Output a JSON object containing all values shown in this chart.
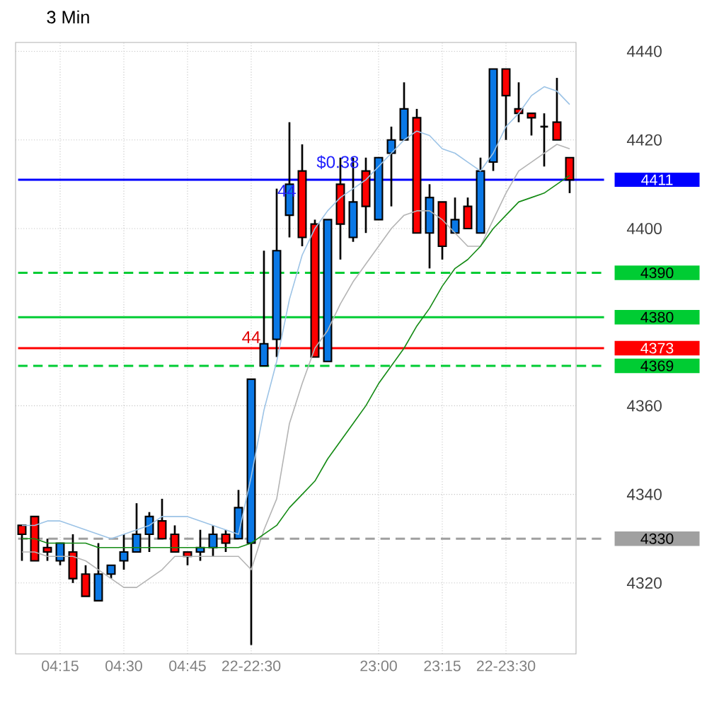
{
  "chart_data": {
    "type": "candlestick",
    "title": "3 Min",
    "categories": [
      null,
      null,
      null,
      "04:15",
      null,
      null,
      null,
      null,
      "04:30",
      null,
      null,
      null,
      null,
      "04:45",
      null,
      null,
      null,
      null,
      "22-22:30",
      null,
      null,
      null,
      null,
      null,
      null,
      null,
      null,
      null,
      "23:00",
      null,
      null,
      null,
      null,
      "23:15",
      null,
      null,
      null,
      null,
      "22-23:30",
      null,
      null,
      null,
      null,
      null
    ],
    "ohlc": [
      [
        4333,
        4333,
        4325,
        4331
      ],
      [
        4335,
        4335,
        4325,
        4325
      ],
      [
        4328,
        4330,
        4325,
        4327
      ],
      [
        4325,
        4329,
        4324,
        4329
      ],
      [
        4327,
        4331,
        4320,
        4321
      ],
      [
        4322,
        4324,
        4317,
        4317
      ],
      [
        4316,
        4329,
        4316,
        4322
      ],
      [
        4322,
        4324,
        4321,
        4324
      ],
      [
        4325,
        4331,
        4323,
        4327
      ],
      [
        4327,
        4338,
        4327,
        4331
      ],
      [
        4331,
        4336,
        4327,
        4335
      ],
      [
        4334,
        4339,
        4330,
        4330
      ],
      [
        4331,
        4333,
        4327,
        4327
      ],
      [
        4327,
        4327,
        4324,
        4326
      ],
      [
        4327,
        4332,
        4325,
        4328
      ],
      [
        4328,
        4333,
        4326,
        4331
      ],
      [
        4331,
        4332,
        4327,
        4329
      ],
      [
        4330,
        4341,
        4330,
        4337
      ],
      [
        4329,
        4366,
        4306,
        4366
      ],
      [
        4369,
        4395,
        4369,
        4374
      ],
      [
        4375,
        4409,
        4371,
        4395
      ],
      [
        4403,
        4424,
        4398,
        4410
      ],
      [
        4413,
        4419,
        4396,
        4398
      ],
      [
        4401,
        4402,
        4371,
        4371
      ],
      [
        4370,
        4402,
        4370,
        4402
      ],
      [
        4410,
        4416,
        4393,
        4401
      ],
      [
        4398,
        4416,
        4397,
        4406
      ],
      [
        4413,
        4416,
        4399,
        4405
      ],
      [
        4402,
        4416,
        4402,
        4416
      ],
      [
        4417,
        4423,
        4405,
        4420
      ],
      [
        4420,
        4433,
        4420,
        4427
      ],
      [
        4425,
        4427,
        4399,
        4399
      ],
      [
        4399,
        4410,
        4391,
        4407
      ],
      [
        4406,
        4406,
        4393,
        4396
      ],
      [
        4399,
        4407,
        4399,
        4402
      ],
      [
        4405,
        4407,
        4400,
        4400
      ],
      [
        4399,
        4416,
        4399,
        4413
      ],
      [
        4415,
        4436,
        4413,
        4436
      ],
      [
        4436,
        4436,
        4420,
        4430
      ],
      [
        4427,
        4433,
        4424,
        4426
      ],
      [
        4426,
        4426,
        4421,
        4425
      ],
      [
        4423,
        4426,
        4414,
        4423
      ],
      [
        4424,
        4434,
        4420,
        4420
      ],
      [
        4416,
        4416,
        4408,
        4411
      ]
    ],
    "colors": [
      "#ff0000",
      "#ff0000",
      "#ff0000",
      "#0a78e6",
      "#ff0000",
      "#ff0000",
      "#0a78e6",
      "#0a78e6",
      "#0a78e6",
      "#0a78e6",
      "#0a78e6",
      "#ff0000",
      "#ff0000",
      "#ff0000",
      "#0a78e6",
      "#0a78e6",
      "#ff0000",
      "#0a78e6",
      "#0a78e6",
      "#0a78e6",
      "#0a78e6",
      "#0a78e6",
      "#ff0000",
      "#ff0000",
      "#0a78e6",
      "#ff0000",
      "#0a78e6",
      "#ff0000",
      "#0a78e6",
      "#0a78e6",
      "#0a78e6",
      "#ff0000",
      "#0a78e6",
      "#ff0000",
      "#0a78e6",
      "#ff0000",
      "#0a78e6",
      "#0a78e6",
      "#ff0000",
      "#ff0000",
      "#ff0000",
      "#000000",
      "#ff0000",
      "#ff0000"
    ],
    "series": [
      {
        "type": "line",
        "color": "#9cc3e6",
        "values": [
          4333,
          4333,
          4334,
          4334,
          4333,
          4332,
          4331,
          4330,
          4331,
          4332,
          4333,
          4335,
          4335,
          4335,
          4334,
          4333,
          4332,
          4331,
          4344,
          4359,
          4370,
          4384,
          4394,
          4400,
          4404,
          4407,
          4409,
          4411,
          4414,
          4417,
          4420,
          4422,
          4421,
          4418,
          4417,
          4415,
          4413,
          4417,
          4423,
          4426,
          4430,
          4432,
          4431,
          4428
        ]
      },
      {
        "type": "line",
        "color": "#b4b4b4",
        "values": [
          4327,
          4327,
          4326,
          4326,
          4326,
          4325,
          4323,
          4321,
          4319,
          4319,
          4321,
          4323,
          4326,
          4326,
          4326,
          4326,
          4326,
          4326,
          4323,
          4332,
          4339,
          4356,
          4365,
          4373,
          4377,
          4383,
          4388,
          4392,
          4396,
          4400,
          4403,
          4404,
          4404,
          4402,
          4399,
          4396,
          4396,
          4402,
          4408,
          4413,
          4415,
          4417,
          4419,
          4418
        ]
      },
      {
        "type": "line",
        "color": "#138a13",
        "values": [
          4330,
          4330,
          4329,
          4329,
          4329,
          4329,
          4328,
          4328,
          4328,
          4328,
          4328,
          4328,
          4328,
          4328,
          4328,
          4328,
          4328,
          4328,
          4329,
          4331,
          4333,
          4337,
          4340,
          4343,
          4348,
          4352,
          4356,
          4360,
          4365,
          4369,
          4373,
          4378,
          4382,
          4387,
          4391,
          4393,
          4396,
          4400,
          4403,
          4406,
          4407,
          4408,
          4410,
          4412
        ]
      }
    ],
    "ylim": [
      4304,
      4442
    ],
    "yticks": [
      4320,
      4340,
      4360,
      4400,
      4420,
      4440
    ],
    "grid": true,
    "ref_lines": [
      {
        "axis": "y",
        "value": 4411,
        "label": "4411",
        "color": "#0000ff",
        "line_style": "solid"
      },
      {
        "axis": "y",
        "value": 4390,
        "label": "4390",
        "color": "#00cc33",
        "line_style": "dashed"
      },
      {
        "axis": "y",
        "value": 4380,
        "label": "4380",
        "color": "#00cc33",
        "line_style": "solid"
      },
      {
        "axis": "y",
        "value": 4373,
        "label": "4373",
        "color": "#ff0000",
        "line_style": "solid"
      },
      {
        "axis": "y",
        "value": 4369,
        "label": "4369",
        "color": "#00cc33",
        "line_style": "dashed"
      },
      {
        "axis": "y",
        "value": 4330,
        "label": "4330",
        "color": "#a0a0a0",
        "line_style": "dashed"
      }
    ],
    "annotations": [
      {
        "text": "$0.38",
        "y": 4411
      },
      {
        "text": "44",
        "y": 4411
      },
      {
        "text": "44",
        "y": 4373
      }
    ]
  }
}
